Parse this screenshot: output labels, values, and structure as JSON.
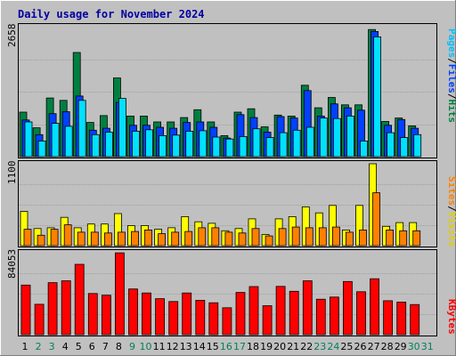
{
  "title": "Daily usage for November 2024",
  "colors": {
    "background": "#c0c0c0",
    "plot_bg": "#c0c0c0",
    "frame_dark": "#808080",
    "frame_light": "#ffffff",
    "title_text": "#0000a0",
    "hits": "#008040",
    "files": "#0040ff",
    "pages": "#00e0ff",
    "visits": "#ffff00",
    "sites": "#ff8000",
    "kbytes": "#ff0000",
    "weekday_label": "#000000",
    "weekend_label": "#00805c"
  },
  "legend": {
    "top": [
      {
        "text": "Pages",
        "color": "#00c0ff"
      },
      {
        "text": "/",
        "color": "#000000"
      },
      {
        "text": "Files",
        "color": "#0040ff"
      },
      {
        "text": "/",
        "color": "#000000"
      },
      {
        "text": "Hits",
        "color": "#008040"
      }
    ],
    "middle": [
      {
        "text": "Sites",
        "color": "#ff8000"
      },
      {
        "text": "/",
        "color": "#000000"
      },
      {
        "text": "Visits",
        "color": "#e0d000"
      }
    ],
    "bottom": [
      {
        "text": "KBytes",
        "color": "#ff0000"
      }
    ]
  },
  "chart_data": [
    {
      "type": "bar",
      "panel": "top",
      "ymax_label": "2658",
      "ylim": [
        0,
        2658
      ],
      "categories": [
        "1",
        "2",
        "3",
        "4",
        "5",
        "6",
        "7",
        "8",
        "9",
        "10",
        "11",
        "12",
        "13",
        "14",
        "15",
        "16",
        "17",
        "18",
        "19",
        "20",
        "21",
        "22",
        "23",
        "24",
        "25",
        "26",
        "27",
        "28",
        "29",
        "30",
        "31"
      ],
      "series": [
        {
          "name": "Hits",
          "values": [
            910,
            590,
            1200,
            1150,
            2130,
            700,
            840,
            1610,
            830,
            830,
            710,
            710,
            800,
            960,
            710,
            430,
            910,
            980,
            610,
            850,
            830,
            1460,
            1000,
            1210,
            1060,
            1060,
            2600,
            720,
            790,
            630,
            null
          ]
        },
        {
          "name": "Files",
          "values": [
            750,
            450,
            880,
            920,
            1240,
            540,
            580,
            1110,
            640,
            640,
            600,
            580,
            700,
            710,
            600,
            380,
            860,
            800,
            500,
            820,
            790,
            1350,
            830,
            1080,
            1000,
            950,
            2560,
            640,
            760,
            580,
            null
          ]
        },
        {
          "name": "Pages",
          "values": [
            710,
            320,
            680,
            620,
            1150,
            450,
            500,
            1190,
            520,
            550,
            430,
            440,
            520,
            530,
            400,
            360,
            410,
            570,
            390,
            490,
            540,
            600,
            790,
            780,
            830,
            320,
            2450,
            490,
            390,
            450,
            null
          ]
        }
      ]
    },
    {
      "type": "bar",
      "panel": "middle",
      "ymax_label": "1100",
      "ylim": [
        0,
        1100
      ],
      "categories": [
        "1",
        "2",
        "3",
        "4",
        "5",
        "6",
        "7",
        "8",
        "9",
        "10",
        "11",
        "12",
        "13",
        "14",
        "15",
        "16",
        "17",
        "18",
        "19",
        "20",
        "21",
        "22",
        "23",
        "24",
        "25",
        "26",
        "27",
        "28",
        "29",
        "30",
        "31"
      ],
      "series": [
        {
          "name": "Visits",
          "values": [
            460,
            230,
            240,
            380,
            240,
            290,
            290,
            430,
            270,
            270,
            220,
            240,
            390,
            320,
            300,
            200,
            230,
            360,
            150,
            360,
            390,
            520,
            440,
            540,
            210,
            540,
            1100,
            260,
            310,
            310,
            null
          ]
        },
        {
          "name": "Sites",
          "values": [
            220,
            140,
            220,
            280,
            180,
            180,
            170,
            180,
            190,
            210,
            160,
            180,
            190,
            240,
            240,
            180,
            170,
            230,
            130,
            230,
            250,
            240,
            240,
            250,
            180,
            210,
            710,
            210,
            200,
            200,
            null
          ]
        }
      ]
    },
    {
      "type": "bar",
      "panel": "bottom",
      "ymax_label": "84053",
      "ylim": [
        0,
        84053
      ],
      "categories": [
        "1",
        "2",
        "3",
        "4",
        "5",
        "6",
        "7",
        "8",
        "9",
        "10",
        "11",
        "12",
        "13",
        "14",
        "15",
        "16",
        "17",
        "18",
        "19",
        "20",
        "21",
        "22",
        "23",
        "24",
        "25",
        "26",
        "27",
        "28",
        "29",
        "30",
        "31"
      ],
      "series": [
        {
          "name": "KBytes",
          "values": [
            50900,
            31200,
            53400,
            55300,
            72200,
            42200,
            40500,
            84000,
            46900,
            42800,
            36900,
            34000,
            42800,
            35300,
            32700,
            27600,
            43300,
            49300,
            29700,
            49500,
            44500,
            55300,
            36400,
            38600,
            54500,
            44000,
            57400,
            34800,
            33400,
            30900,
            null
          ]
        }
      ]
    }
  ]
}
